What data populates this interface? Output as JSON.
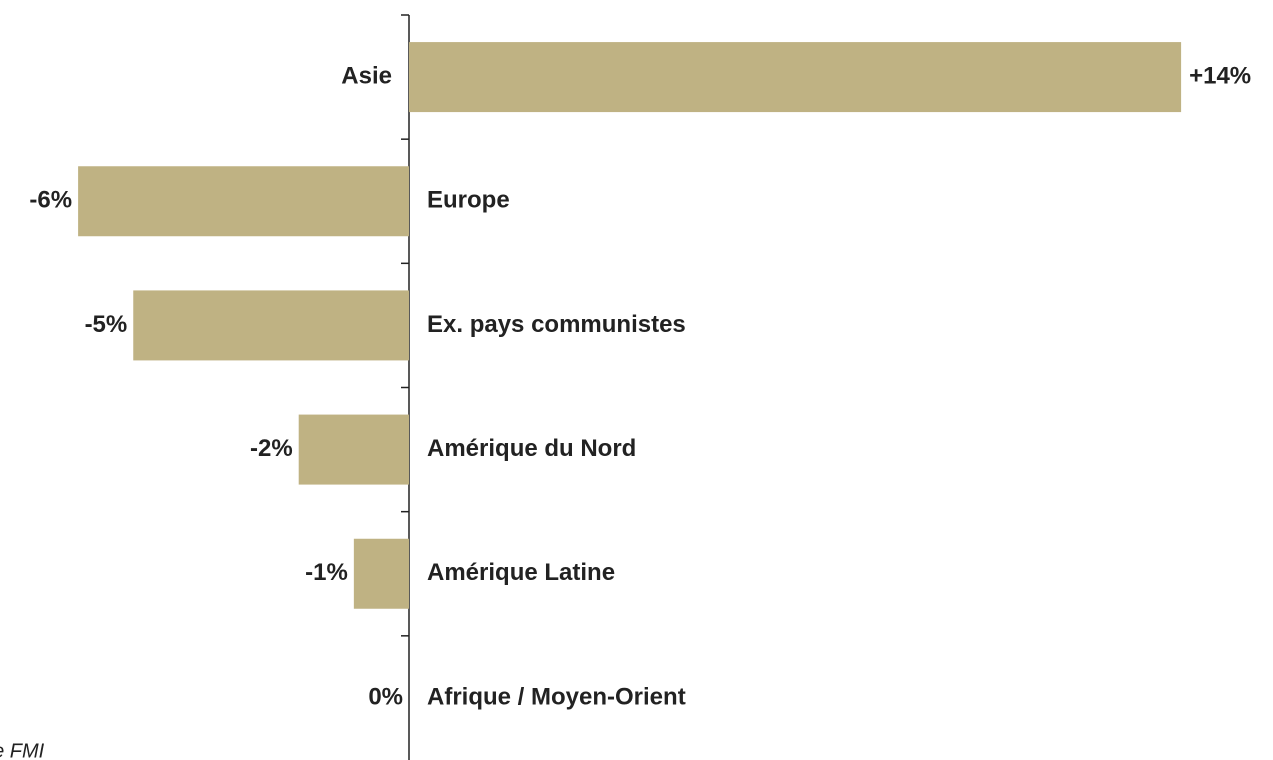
{
  "chart_data": {
    "type": "hbar",
    "categories": [
      "Asie",
      "Europe",
      "Ex. pays communistes",
      "Amérique du Nord",
      "Amérique Latine",
      "Afrique / Moyen-Orient"
    ],
    "values": [
      14,
      -6,
      -5,
      -2,
      -1,
      0
    ],
    "value_labels": [
      "+14%",
      "-6%",
      "-5%",
      "-2%",
      "-1%",
      "0%"
    ],
    "color": "#bfb283",
    "source": "de FMI"
  }
}
